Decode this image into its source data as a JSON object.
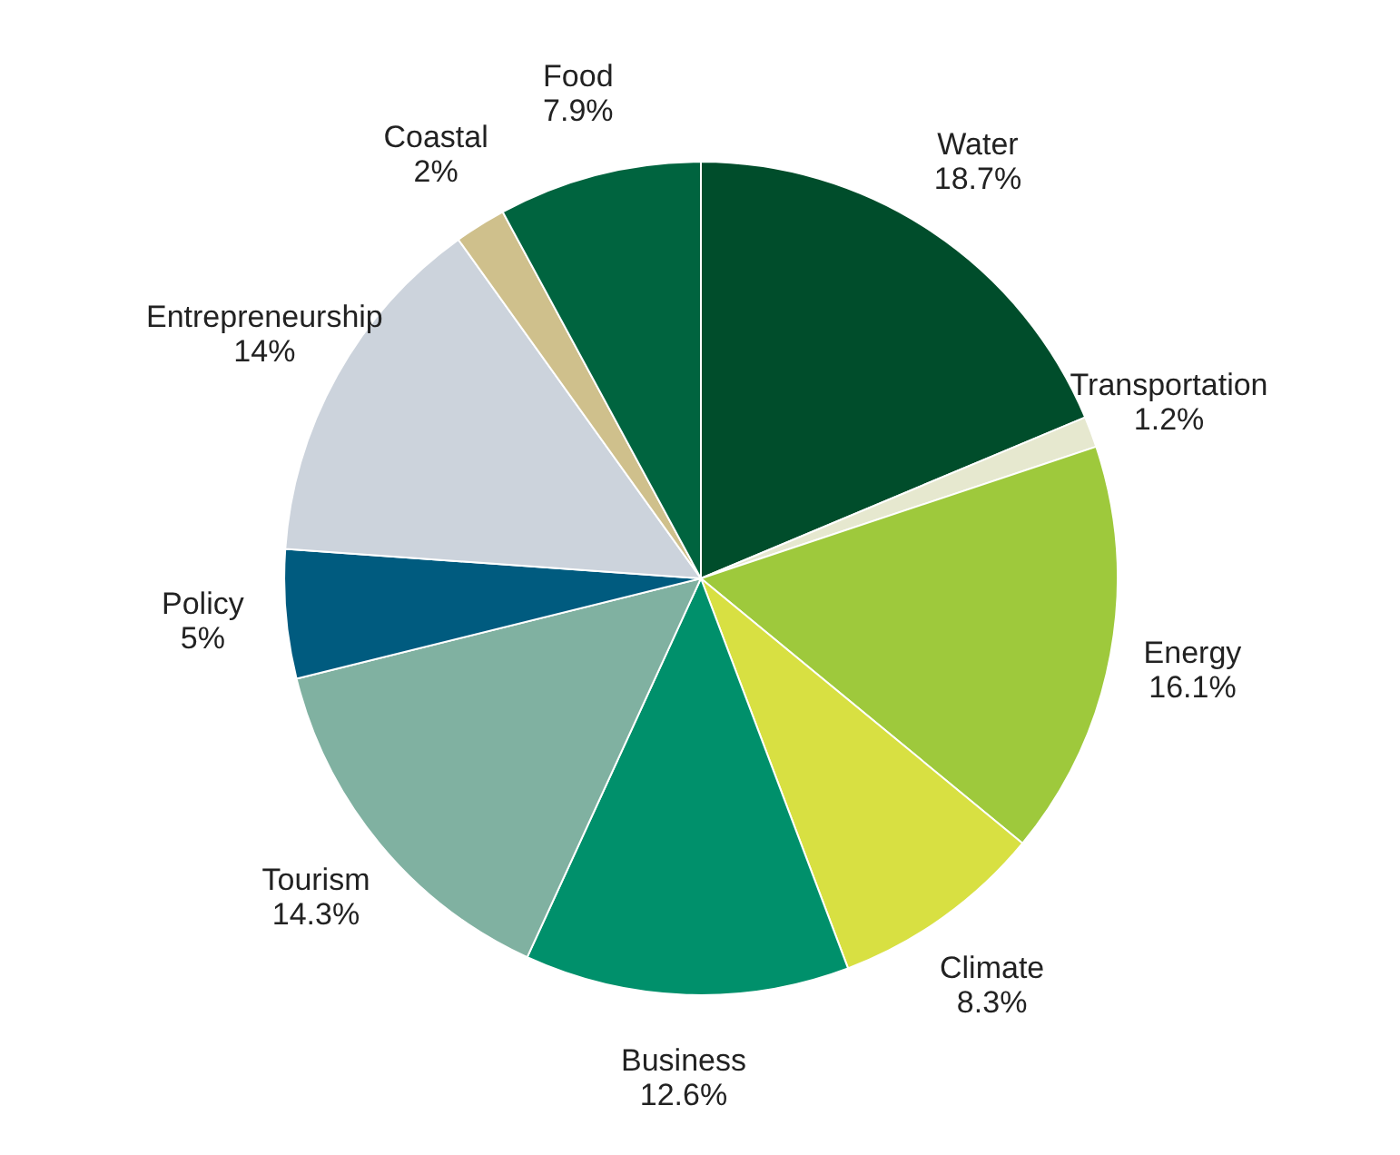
{
  "chart_data": {
    "type": "pie",
    "categories": [
      "Water",
      "Transportation",
      "Energy",
      "Climate",
      "Business",
      "Tourism",
      "Policy",
      "Entrepreneurship",
      "Coastal",
      "Food"
    ],
    "values": [
      18.7,
      1.2,
      16.1,
      8.3,
      12.6,
      14.3,
      5,
      14,
      2,
      7.9
    ],
    "value_labels": [
      "18.7%",
      "1.2%",
      "16.1%",
      "8.3%",
      "12.6%",
      "14.3%",
      "5%",
      "14%",
      "2%",
      "7.9%"
    ],
    "colors": [
      "#004d2b",
      "#e6e8cf",
      "#9ec93c",
      "#d8e042",
      "#00906b",
      "#80b1a1",
      "#005b7f",
      "#ccd3dc",
      "#cfc08c",
      "#00643f"
    ]
  }
}
